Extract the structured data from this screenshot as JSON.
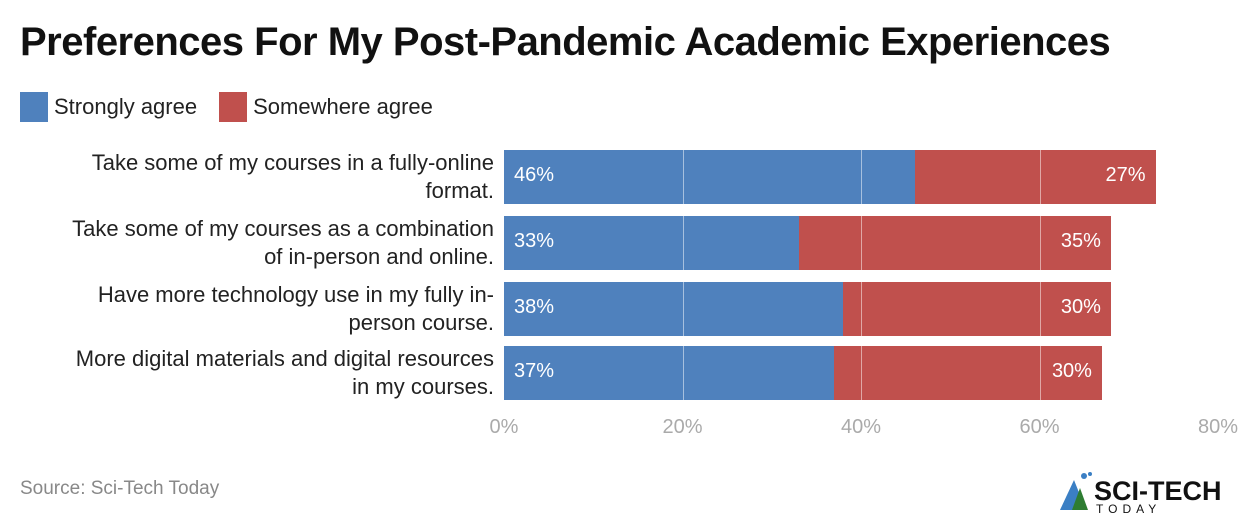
{
  "title": "Preferences For My Post-Pandemic Academic Experiences",
  "legend": [
    {
      "label": "Strongly agree",
      "color": "#4f81bd"
    },
    {
      "label": "Somewhere agree",
      "color": "#c0504d"
    }
  ],
  "source": "Source: Sci-Tech Today",
  "logo": {
    "main": "SCI-TECH",
    "sub": "TODAY"
  },
  "chart_data": {
    "type": "bar",
    "orientation": "horizontal",
    "stacked": true,
    "title": "Preferences For My Post-Pandemic Academic Experiences",
    "categories": [
      "Take some of my courses in a fully-online format.",
      "Take some of my courses as a combination of in-person and online.",
      "Have more technology use in my fully in-person course.",
      "More digital materials and digital resources in my courses."
    ],
    "series": [
      {
        "name": "Strongly agree",
        "values": [
          46,
          33,
          38,
          37
        ],
        "color": "#4f81bd"
      },
      {
        "name": "Somewhere agree",
        "values": [
          27,
          35,
          30,
          30
        ],
        "color": "#c0504d"
      }
    ],
    "xlim": [
      0,
      80
    ],
    "xticks": [
      "0%",
      "20%",
      "40%",
      "60%",
      "80%"
    ],
    "xlabel": "",
    "ylabel": "",
    "legend_position": "top-left",
    "grid": true
  },
  "rows": [
    {
      "line1": "Take some of my courses in a fully-online",
      "line2": "format.",
      "a": "46%",
      "b": "27%"
    },
    {
      "line1": "Take some of my courses as a combination",
      "line2": "of in-person and online.",
      "a": "33%",
      "b": "35%"
    },
    {
      "line1": "Have more technology use in my fully in-",
      "line2": "person course.",
      "a": "38%",
      "b": "30%"
    },
    {
      "line1": "More digital materials and digital resources",
      "line2": "in my courses.",
      "a": "37%",
      "b": "30%"
    }
  ]
}
